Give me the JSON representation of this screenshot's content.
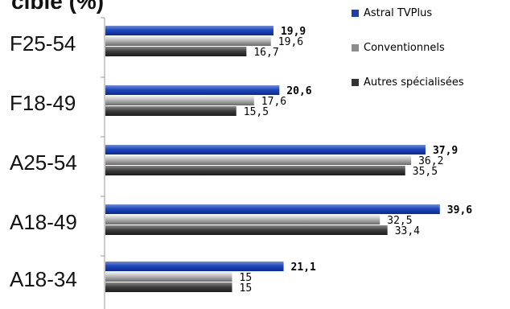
{
  "title_fragment": "cible (%)",
  "chart_data": {
    "type": "bar",
    "orientation": "horizontal",
    "categories": [
      "F25-54",
      "F18-49",
      "A25-54",
      "A18-49",
      "A18-34"
    ],
    "series": [
      {
        "name": "Astral TVPlus",
        "values": [
          "19,9",
          "20,6",
          "37,9",
          "39,6",
          "21,1"
        ],
        "color": "#1b3fa6"
      },
      {
        "name": "Conventionnels",
        "values": [
          "19,6",
          "17,6",
          "36,2",
          "32,5",
          "15"
        ],
        "color": "#9a9a9a"
      },
      {
        "name": "Autres spécialisées",
        "values": [
          "16,7",
          "15,5",
          "35,5",
          "33,4",
          "15"
        ],
        "color": "#4a4a4a"
      }
    ],
    "xlim": [
      0,
      45
    ],
    "grid": false,
    "legend": "top-right"
  }
}
